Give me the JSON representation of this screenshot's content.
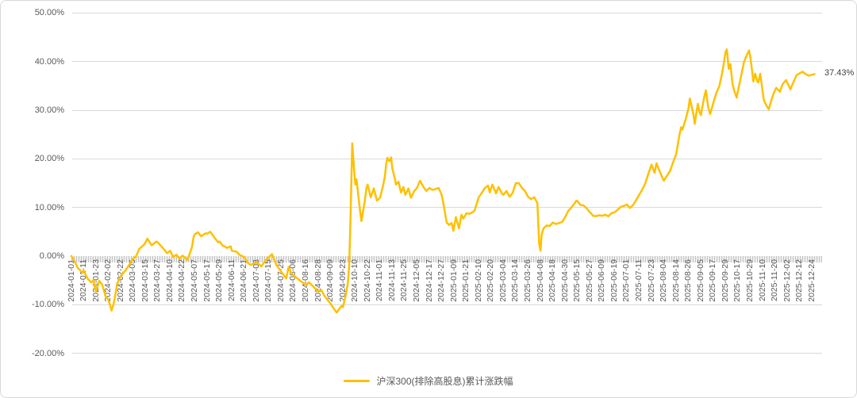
{
  "colors": {
    "line": "#FFC000",
    "grid": "#D9D9D9",
    "axis_text": "#595959",
    "end_label_text": "#404040",
    "frame_border": "#D9D9D9",
    "background": "#FFFFFF"
  },
  "chart_data": {
    "type": "line",
    "title": "",
    "grid": "horizontal",
    "legend_position": "bottom-center",
    "end_label": "37.43%",
    "y_axis": {
      "unit": "percent",
      "min": -20,
      "max": 50,
      "ticks": [
        {
          "label": "50.00%",
          "value": 50
        },
        {
          "label": "40.00%",
          "value": 40
        },
        {
          "label": "30.00%",
          "value": 30
        },
        {
          "label": "20.00%",
          "value": 20
        },
        {
          "label": "10.00%",
          "value": 10
        },
        {
          "label": "0.00%",
          "value": 0
        },
        {
          "label": "-10.00%",
          "value": -10
        },
        {
          "label": "-20.00%",
          "value": -20
        }
      ]
    },
    "x_axis": {
      "note": "Category (trading-day) axis. Point t-coordinates below are in x-tick units (adjacent labeled ticks are 8 trading days apart; tick index 0 = 2024-01-01, 60 = 2025-12-24).",
      "tick_labels": [
        "2024-01-01",
        "2024-01-11",
        "2024-01-23",
        "2024-02-02",
        "2024-02-22",
        "2024-03-05",
        "2024-03-15",
        "2024-03-27",
        "2024-04-10",
        "2024-04-22",
        "2024-05-07",
        "2024-05-17",
        "2024-05-29",
        "2024-06-11",
        "2024-06-21",
        "2024-07-03",
        "2024-07-15",
        "2024-07-25",
        "2024-08-06",
        "2024-08-16",
        "2024-08-28",
        "2024-09-09",
        "2024-09-23",
        "2024-10-10",
        "2024-10-22",
        "2024-11-01",
        "2024-11-13",
        "2024-11-25",
        "2024-12-05",
        "2024-12-17",
        "2024-12-27",
        "2025-01-09",
        "2025-01-21",
        "2025-02-10",
        "2025-02-20",
        "2025-03-04",
        "2025-03-14",
        "2025-03-26",
        "2025-04-08",
        "2025-04-18",
        "2025-04-30",
        "2025-05-15",
        "2025-05-27",
        "2025-06-09",
        "2025-06-19",
        "2025-07-01",
        "2025-07-11",
        "2025-07-23",
        "2025-08-04",
        "2025-08-14",
        "2025-08-26",
        "2025-09-05",
        "2025-09-17",
        "2025-09-29",
        "2025-10-17",
        "2025-10-29",
        "2025-11-10",
        "2025-11-20",
        "2025-12-02",
        "2025-12-12",
        "2025-12-24"
      ]
    },
    "series": [
      {
        "name": "沪深300(排除高股息)累计涨跌幅",
        "color": "#FFC000",
        "unit": "%",
        "points": [
          [
            0,
            0.0
          ],
          [
            0.3,
            -1.3
          ],
          [
            0.5,
            -2.4
          ],
          [
            0.9,
            -3.4
          ],
          [
            1,
            -3.0
          ],
          [
            1.3,
            -4.6
          ],
          [
            1.6,
            -5.4
          ],
          [
            1.8,
            -5.0
          ],
          [
            1.9,
            -6.5
          ],
          [
            2,
            -7.3
          ],
          [
            2.25,
            -5.1
          ],
          [
            2.5,
            -5.9
          ],
          [
            2.75,
            -8.2
          ],
          [
            3,
            -9.0
          ],
          [
            3.25,
            -11.2
          ],
          [
            3.4,
            -10.0
          ],
          [
            3.5,
            -8.8
          ],
          [
            3.6,
            -7.3
          ],
          [
            3.7,
            -5.7
          ],
          [
            3.9,
            -4.6
          ],
          [
            4,
            -4.1
          ],
          [
            4.4,
            -2.9
          ],
          [
            4.6,
            -2.1
          ],
          [
            5,
            -0.5
          ],
          [
            5.25,
            0.0
          ],
          [
            5.5,
            1.5
          ],
          [
            5.9,
            2.4
          ],
          [
            6,
            2.8
          ],
          [
            6.15,
            3.6
          ],
          [
            6.5,
            2.2
          ],
          [
            6.9,
            3.0
          ],
          [
            7,
            2.8
          ],
          [
            7.4,
            1.7
          ],
          [
            7.75,
            0.6
          ],
          [
            8,
            1.1
          ],
          [
            8.25,
            -0.2
          ],
          [
            8.5,
            0.3
          ],
          [
            8.75,
            -0.5
          ],
          [
            9,
            0.1
          ],
          [
            9.4,
            -0.8
          ],
          [
            9.75,
            1.7
          ],
          [
            9.9,
            3.9
          ],
          [
            10,
            4.5
          ],
          [
            10.25,
            4.9
          ],
          [
            10.5,
            4.1
          ],
          [
            10.9,
            4.7
          ],
          [
            11,
            4.6
          ],
          [
            11.25,
            5.0
          ],
          [
            11.5,
            4.1
          ],
          [
            11.9,
            2.8
          ],
          [
            12,
            3.0
          ],
          [
            12.25,
            2.2
          ],
          [
            12.6,
            1.7
          ],
          [
            12.9,
            2.0
          ],
          [
            13,
            1.1
          ],
          [
            13.4,
            0.9
          ],
          [
            13.6,
            0.3
          ],
          [
            14,
            -0.2
          ],
          [
            14.25,
            -1.3
          ],
          [
            14.5,
            -1.8
          ],
          [
            14.75,
            -1.6
          ],
          [
            15,
            -1.3
          ],
          [
            15.4,
            -2.1
          ],
          [
            15.75,
            -0.8
          ],
          [
            16,
            -0.2
          ],
          [
            16.25,
            0.4
          ],
          [
            16.6,
            -1.8
          ],
          [
            17,
            -3.2
          ],
          [
            17.4,
            -4.6
          ],
          [
            17.6,
            -2.2
          ],
          [
            17.75,
            -3.2
          ],
          [
            18,
            -4.0
          ],
          [
            18.4,
            -4.8
          ],
          [
            18.6,
            -5.2
          ],
          [
            19,
            -5.9
          ],
          [
            19.25,
            -5.4
          ],
          [
            19.6,
            -6.3
          ],
          [
            20,
            -7.3
          ],
          [
            20.25,
            -7.0
          ],
          [
            20.5,
            -8.2
          ],
          [
            20.75,
            -9.0
          ],
          [
            21,
            -9.8
          ],
          [
            21.25,
            -10.8
          ],
          [
            21.5,
            -11.6
          ],
          [
            21.75,
            -10.7
          ],
          [
            21.9,
            -10.2
          ],
          [
            22,
            -10.5
          ],
          [
            22.25,
            -7.8
          ],
          [
            22.4,
            -5.5
          ],
          [
            22.5,
            -2.0
          ],
          [
            22.6,
            6.5
          ],
          [
            22.75,
            23.2
          ],
          [
            22.9,
            17.8
          ],
          [
            23,
            14.7
          ],
          [
            23.1,
            15.8
          ],
          [
            23.25,
            12.2
          ],
          [
            23.4,
            9.0
          ],
          [
            23.5,
            7.2
          ],
          [
            23.75,
            11.0
          ],
          [
            23.9,
            14.0
          ],
          [
            24,
            14.7
          ],
          [
            24.25,
            12.1
          ],
          [
            24.5,
            13.9
          ],
          [
            24.75,
            11.4
          ],
          [
            25,
            12.0
          ],
          [
            25.25,
            14.5
          ],
          [
            25.4,
            16.5
          ],
          [
            25.5,
            19.0
          ],
          [
            25.6,
            20.2
          ],
          [
            25.75,
            19.5
          ],
          [
            25.9,
            20.3
          ],
          [
            26,
            18.0
          ],
          [
            26.2,
            16.0
          ],
          [
            26.3,
            14.7
          ],
          [
            26.5,
            15.3
          ],
          [
            26.7,
            13.1
          ],
          [
            26.9,
            14.2
          ],
          [
            27.05,
            12.6
          ],
          [
            27.3,
            13.9
          ],
          [
            27.5,
            12.0
          ],
          [
            27.75,
            13.3
          ],
          [
            28,
            14.0
          ],
          [
            28.25,
            15.5
          ],
          [
            28.5,
            14.3
          ],
          [
            28.75,
            13.4
          ],
          [
            29,
            14.0
          ],
          [
            29.25,
            13.6
          ],
          [
            29.5,
            13.8
          ],
          [
            29.75,
            14.0
          ],
          [
            30,
            12.6
          ],
          [
            30.15,
            10.6
          ],
          [
            30.4,
            6.9
          ],
          [
            30.6,
            6.4
          ],
          [
            30.8,
            6.8
          ],
          [
            30.95,
            5.2
          ],
          [
            31.15,
            8.0
          ],
          [
            31.4,
            5.7
          ],
          [
            31.6,
            8.5
          ],
          [
            31.75,
            7.7
          ],
          [
            32,
            8.8
          ],
          [
            32.25,
            8.7
          ],
          [
            32.5,
            9.0
          ],
          [
            32.65,
            9.3
          ],
          [
            32.9,
            11.3
          ],
          [
            33,
            12.1
          ],
          [
            33.25,
            13.0
          ],
          [
            33.5,
            14.0
          ],
          [
            33.75,
            14.5
          ],
          [
            33.9,
            13.1
          ],
          [
            34,
            14.0
          ],
          [
            34.1,
            14.7
          ],
          [
            34.4,
            12.9
          ],
          [
            34.6,
            14.2
          ],
          [
            34.9,
            12.8
          ],
          [
            35,
            12.6
          ],
          [
            35.25,
            13.4
          ],
          [
            35.5,
            12.2
          ],
          [
            35.75,
            13.0
          ],
          [
            36,
            15.0
          ],
          [
            36.25,
            15.0
          ],
          [
            36.5,
            14.0
          ],
          [
            36.75,
            13.4
          ],
          [
            37,
            12.2
          ],
          [
            37.25,
            11.7
          ],
          [
            37.5,
            12.1
          ],
          [
            37.75,
            10.9
          ],
          [
            37.9,
            2.5
          ],
          [
            38,
            1.1
          ],
          [
            38.1,
            4.4
          ],
          [
            38.25,
            5.7
          ],
          [
            38.5,
            6.3
          ],
          [
            38.75,
            6.2
          ],
          [
            39,
            6.9
          ],
          [
            39.25,
            6.6
          ],
          [
            39.5,
            6.8
          ],
          [
            39.75,
            7.0
          ],
          [
            40,
            8.0
          ],
          [
            40.25,
            9.3
          ],
          [
            40.5,
            10.0
          ],
          [
            40.75,
            10.8
          ],
          [
            40.9,
            11.4
          ],
          [
            41,
            11.3
          ],
          [
            41.25,
            10.5
          ],
          [
            41.5,
            10.4
          ],
          [
            41.75,
            9.8
          ],
          [
            42,
            9.0
          ],
          [
            42.1,
            8.8
          ],
          [
            42.25,
            8.3
          ],
          [
            42.5,
            8.2
          ],
          [
            42.75,
            8.4
          ],
          [
            43,
            8.3
          ],
          [
            43.25,
            8.5
          ],
          [
            43.5,
            8.2
          ],
          [
            43.75,
            8.8
          ],
          [
            44,
            9.0
          ],
          [
            44.25,
            9.5
          ],
          [
            44.5,
            10.1
          ],
          [
            44.75,
            10.3
          ],
          [
            45,
            10.6
          ],
          [
            45.25,
            9.9
          ],
          [
            45.5,
            10.5
          ],
          [
            45.75,
            11.5
          ],
          [
            46,
            12.6
          ],
          [
            46.25,
            13.7
          ],
          [
            46.5,
            15.0
          ],
          [
            46.75,
            17.0
          ],
          [
            47,
            18.8
          ],
          [
            47.25,
            17.1
          ],
          [
            47.4,
            19.1
          ],
          [
            47.6,
            17.8
          ],
          [
            47.9,
            16.0
          ],
          [
            48,
            15.5
          ],
          [
            48.25,
            16.5
          ],
          [
            48.5,
            17.5
          ],
          [
            48.75,
            19.3
          ],
          [
            49,
            21.0
          ],
          [
            49.25,
            24.8
          ],
          [
            49.4,
            26.5
          ],
          [
            49.5,
            26.0
          ],
          [
            49.75,
            28.0
          ],
          [
            50,
            30.5
          ],
          [
            50.1,
            32.4
          ],
          [
            50.4,
            29.0
          ],
          [
            50.5,
            27.2
          ],
          [
            50.75,
            31.3
          ],
          [
            50.9,
            29.5
          ],
          [
            51,
            29.0
          ],
          [
            51.25,
            32.5
          ],
          [
            51.4,
            34.1
          ],
          [
            51.6,
            30.5
          ],
          [
            51.75,
            29.2
          ],
          [
            52,
            31.5
          ],
          [
            52.25,
            33.5
          ],
          [
            52.5,
            35.0
          ],
          [
            52.75,
            38.0
          ],
          [
            53,
            42.0
          ],
          [
            53.1,
            42.5
          ],
          [
            53.25,
            38.5
          ],
          [
            53.4,
            39.5
          ],
          [
            53.55,
            35.5
          ],
          [
            53.7,
            34.0
          ],
          [
            53.9,
            32.6
          ],
          [
            54,
            34.0
          ],
          [
            54.25,
            37.0
          ],
          [
            54.5,
            40.0
          ],
          [
            54.75,
            41.5
          ],
          [
            54.9,
            42.3
          ],
          [
            55,
            41.0
          ],
          [
            55.1,
            39.0
          ],
          [
            55.25,
            35.9
          ],
          [
            55.4,
            37.5
          ],
          [
            55.55,
            36.0
          ],
          [
            55.65,
            35.7
          ],
          [
            55.8,
            37.5
          ],
          [
            56.1,
            32.1
          ],
          [
            56.3,
            31.0
          ],
          [
            56.5,
            30.2
          ],
          [
            56.7,
            32.0
          ],
          [
            56.9,
            33.5
          ],
          [
            57.1,
            34.6
          ],
          [
            57.4,
            33.8
          ],
          [
            57.6,
            35.3
          ],
          [
            57.9,
            36.2
          ],
          [
            58,
            35.6
          ],
          [
            58.25,
            34.3
          ],
          [
            58.5,
            35.8
          ],
          [
            58.75,
            37.2
          ],
          [
            59,
            37.6
          ],
          [
            59.25,
            37.9
          ],
          [
            59.5,
            37.4
          ],
          [
            59.75,
            37.1
          ],
          [
            60,
            37.3
          ],
          [
            60.2,
            37.43
          ]
        ]
      }
    ],
    "key_points": [
      {
        "date": "2024-01-01",
        "value_pct": 0.0
      },
      {
        "date": "2024-02-05",
        "value_pct": -11.2
      },
      {
        "date": "2024-05-20",
        "value_pct": 5.0
      },
      {
        "date": "2024-09-13",
        "value_pct": -11.6
      },
      {
        "date": "2024-10-08",
        "value_pct": 23.2
      },
      {
        "date": "2024-11-12",
        "value_pct": 20.3
      },
      {
        "date": "2025-04-08",
        "value_pct": 1.1
      },
      {
        "date": "2025-09-30",
        "value_pct": 42.5
      },
      {
        "date": "2025-11-17",
        "value_pct": 30.2
      },
      {
        "date": "2025-12-24",
        "value_pct": 37.43
      }
    ],
    "legend": {
      "entries": [
        "沪深300(排除高股息)累计涨跌幅"
      ]
    }
  }
}
